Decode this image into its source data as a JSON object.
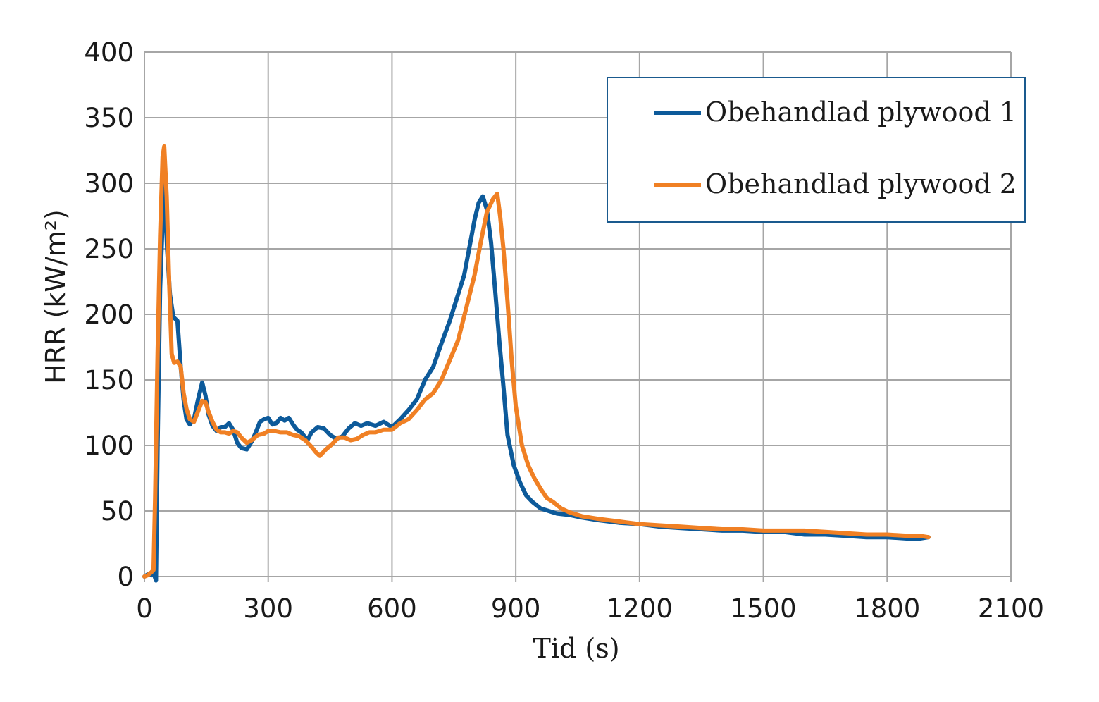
{
  "chart_data": {
    "type": "line",
    "xlabel": "Tid (s)",
    "ylabel": "HRR (kW/m²)",
    "xlim": [
      0,
      2100
    ],
    "ylim": [
      0,
      400
    ],
    "x_ticks": [
      "0",
      "300",
      "600",
      "900",
      "1200",
      "1500",
      "1800",
      "2100"
    ],
    "y_ticks": [
      "0",
      "50",
      "100",
      "150",
      "200",
      "250",
      "300",
      "350",
      "400"
    ],
    "grid": true,
    "legend_position": "top-right",
    "series": [
      {
        "name": "Obehandlad plywood 1",
        "color": "#0d5a9a",
        "points": [
          [
            0,
            0
          ],
          [
            10,
            2
          ],
          [
            18,
            1
          ],
          [
            22,
            3
          ],
          [
            28,
            -3
          ],
          [
            32,
            100
          ],
          [
            38,
            220
          ],
          [
            44,
            270
          ],
          [
            48,
            310
          ],
          [
            55,
            250
          ],
          [
            62,
            215
          ],
          [
            70,
            198
          ],
          [
            80,
            195
          ],
          [
            88,
            160
          ],
          [
            95,
            135
          ],
          [
            102,
            120
          ],
          [
            110,
            116
          ],
          [
            120,
            120
          ],
          [
            130,
            135
          ],
          [
            140,
            148
          ],
          [
            148,
            138
          ],
          [
            155,
            124
          ],
          [
            165,
            115
          ],
          [
            175,
            111
          ],
          [
            185,
            114
          ],
          [
            195,
            114
          ],
          [
            205,
            117
          ],
          [
            215,
            112
          ],
          [
            225,
            102
          ],
          [
            235,
            98
          ],
          [
            248,
            97
          ],
          [
            260,
            103
          ],
          [
            270,
            110
          ],
          [
            280,
            118
          ],
          [
            290,
            120
          ],
          [
            300,
            121
          ],
          [
            310,
            116
          ],
          [
            320,
            117
          ],
          [
            330,
            121
          ],
          [
            340,
            119
          ],
          [
            350,
            121
          ],
          [
            360,
            116
          ],
          [
            370,
            112
          ],
          [
            380,
            110
          ],
          [
            395,
            104
          ],
          [
            405,
            110
          ],
          [
            420,
            114
          ],
          [
            435,
            113
          ],
          [
            450,
            108
          ],
          [
            465,
            105
          ],
          [
            480,
            107
          ],
          [
            495,
            113
          ],
          [
            510,
            117
          ],
          [
            525,
            115
          ],
          [
            540,
            117
          ],
          [
            560,
            115
          ],
          [
            580,
            118
          ],
          [
            600,
            114
          ],
          [
            620,
            120
          ],
          [
            640,
            127
          ],
          [
            660,
            135
          ],
          [
            680,
            150
          ],
          [
            700,
            160
          ],
          [
            720,
            178
          ],
          [
            740,
            195
          ],
          [
            760,
            215
          ],
          [
            775,
            230
          ],
          [
            790,
            255
          ],
          [
            800,
            272
          ],
          [
            810,
            285
          ],
          [
            820,
            290
          ],
          [
            830,
            280
          ],
          [
            840,
            255
          ],
          [
            850,
            218
          ],
          [
            860,
            180
          ],
          [
            870,
            145
          ],
          [
            880,
            108
          ],
          [
            895,
            85
          ],
          [
            910,
            72
          ],
          [
            925,
            62
          ],
          [
            940,
            57
          ],
          [
            960,
            52
          ],
          [
            980,
            50
          ],
          [
            1000,
            48
          ],
          [
            1030,
            47
          ],
          [
            1060,
            45
          ],
          [
            1100,
            43
          ],
          [
            1150,
            41
          ],
          [
            1200,
            40
          ],
          [
            1250,
            38
          ],
          [
            1300,
            37
          ],
          [
            1350,
            36
          ],
          [
            1400,
            35
          ],
          [
            1450,
            35
          ],
          [
            1500,
            34
          ],
          [
            1550,
            34
          ],
          [
            1600,
            32
          ],
          [
            1650,
            32
          ],
          [
            1700,
            31
          ],
          [
            1750,
            30
          ],
          [
            1800,
            30
          ],
          [
            1850,
            29
          ],
          [
            1880,
            29
          ],
          [
            1900,
            30
          ]
        ]
      },
      {
        "name": "Obehandlad plywood 2",
        "color": "#f08024",
        "points": [
          [
            0,
            0
          ],
          [
            8,
            1
          ],
          [
            16,
            3
          ],
          [
            22,
            5
          ],
          [
            26,
            60
          ],
          [
            32,
            170
          ],
          [
            38,
            260
          ],
          [
            44,
            320
          ],
          [
            48,
            328
          ],
          [
            54,
            290
          ],
          [
            60,
            225
          ],
          [
            66,
            170
          ],
          [
            72,
            163
          ],
          [
            80,
            164
          ],
          [
            88,
            160
          ],
          [
            95,
            140
          ],
          [
            102,
            128
          ],
          [
            110,
            120
          ],
          [
            120,
            118
          ],
          [
            130,
            126
          ],
          [
            140,
            134
          ],
          [
            148,
            133
          ],
          [
            155,
            126
          ],
          [
            165,
            118
          ],
          [
            175,
            112
          ],
          [
            185,
            110
          ],
          [
            195,
            110
          ],
          [
            205,
            109
          ],
          [
            215,
            111
          ],
          [
            225,
            110
          ],
          [
            235,
            106
          ],
          [
            248,
            102
          ],
          [
            260,
            104
          ],
          [
            275,
            108
          ],
          [
            290,
            109
          ],
          [
            300,
            111
          ],
          [
            315,
            111
          ],
          [
            330,
            110
          ],
          [
            345,
            110
          ],
          [
            360,
            108
          ],
          [
            375,
            107
          ],
          [
            390,
            104
          ],
          [
            405,
            99
          ],
          [
            415,
            95
          ],
          [
            425,
            92
          ],
          [
            440,
            97
          ],
          [
            455,
            101
          ],
          [
            470,
            106
          ],
          [
            485,
            106
          ],
          [
            500,
            104
          ],
          [
            515,
            105
          ],
          [
            530,
            108
          ],
          [
            545,
            110
          ],
          [
            560,
            110
          ],
          [
            580,
            112
          ],
          [
            600,
            112
          ],
          [
            620,
            117
          ],
          [
            640,
            120
          ],
          [
            660,
            127
          ],
          [
            680,
            135
          ],
          [
            700,
            140
          ],
          [
            720,
            150
          ],
          [
            740,
            165
          ],
          [
            760,
            180
          ],
          [
            780,
            205
          ],
          [
            800,
            230
          ],
          [
            815,
            255
          ],
          [
            830,
            278
          ],
          [
            845,
            288
          ],
          [
            855,
            292
          ],
          [
            862,
            275
          ],
          [
            870,
            250
          ],
          [
            880,
            210
          ],
          [
            890,
            165
          ],
          [
            900,
            130
          ],
          [
            915,
            100
          ],
          [
            930,
            85
          ],
          [
            945,
            75
          ],
          [
            960,
            67
          ],
          [
            975,
            60
          ],
          [
            990,
            57
          ],
          [
            1010,
            52
          ],
          [
            1030,
            49
          ],
          [
            1060,
            46
          ],
          [
            1100,
            44
          ],
          [
            1150,
            42
          ],
          [
            1200,
            40
          ],
          [
            1250,
            39
          ],
          [
            1300,
            38
          ],
          [
            1350,
            37
          ],
          [
            1400,
            36
          ],
          [
            1450,
            36
          ],
          [
            1500,
            35
          ],
          [
            1550,
            35
          ],
          [
            1600,
            35
          ],
          [
            1650,
            34
          ],
          [
            1700,
            33
          ],
          [
            1750,
            32
          ],
          [
            1800,
            32
          ],
          [
            1850,
            31
          ],
          [
            1880,
            31
          ],
          [
            1900,
            30
          ]
        ]
      }
    ]
  }
}
